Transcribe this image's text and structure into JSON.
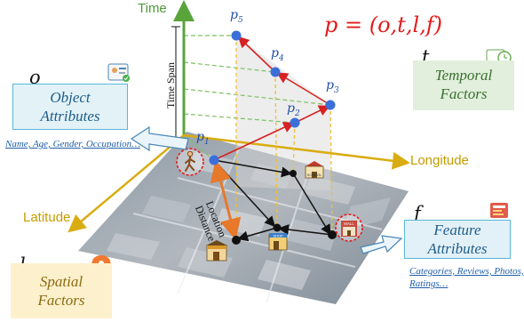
{
  "formula": "p = (o,t,l,f)",
  "axes": {
    "time": "Time",
    "longitude": "Longitude",
    "latitude": "Latitude"
  },
  "annotations": {
    "time_span": "Time Span",
    "location_distance_line1": "Location",
    "location_distance_line2": "Distance"
  },
  "points": [
    {
      "base": "p",
      "sub": "1"
    },
    {
      "base": "p",
      "sub": "2"
    },
    {
      "base": "p",
      "sub": "3"
    },
    {
      "base": "p",
      "sub": "4"
    },
    {
      "base": "p",
      "sub": "5"
    }
  ],
  "factors": {
    "object": {
      "letter": "o",
      "line1": "Object",
      "line2": "Attributes",
      "note": "Name, Age, Gender, Occupation…",
      "icon": "id-card-icon"
    },
    "temporal": {
      "letter": "t",
      "line1": "Temporal",
      "line2": "Factors",
      "icon": "clock-icon"
    },
    "feature": {
      "letter": "f",
      "line1": "Feature",
      "line2": "Attributes",
      "note": "Categories, Reviews, Photos, Ratings…",
      "icon": "menu-board-icon"
    },
    "spatial": {
      "letter": "l",
      "line1": "Spatial",
      "line2": "Factors",
      "icon": "location-pin-icon"
    }
  },
  "map_labels": {
    "school": "SCHOOL",
    "mall": "MALL",
    "shop": "SHOP"
  },
  "colors": {
    "time_axis": "#5aa43c",
    "geo_axis": "#d9ac12",
    "trajectory": "#d62222",
    "link": "#111111",
    "distance": "#e8782a",
    "point": "#3a6ed8",
    "projection": "#f0c030",
    "guide": "#7cc060"
  }
}
